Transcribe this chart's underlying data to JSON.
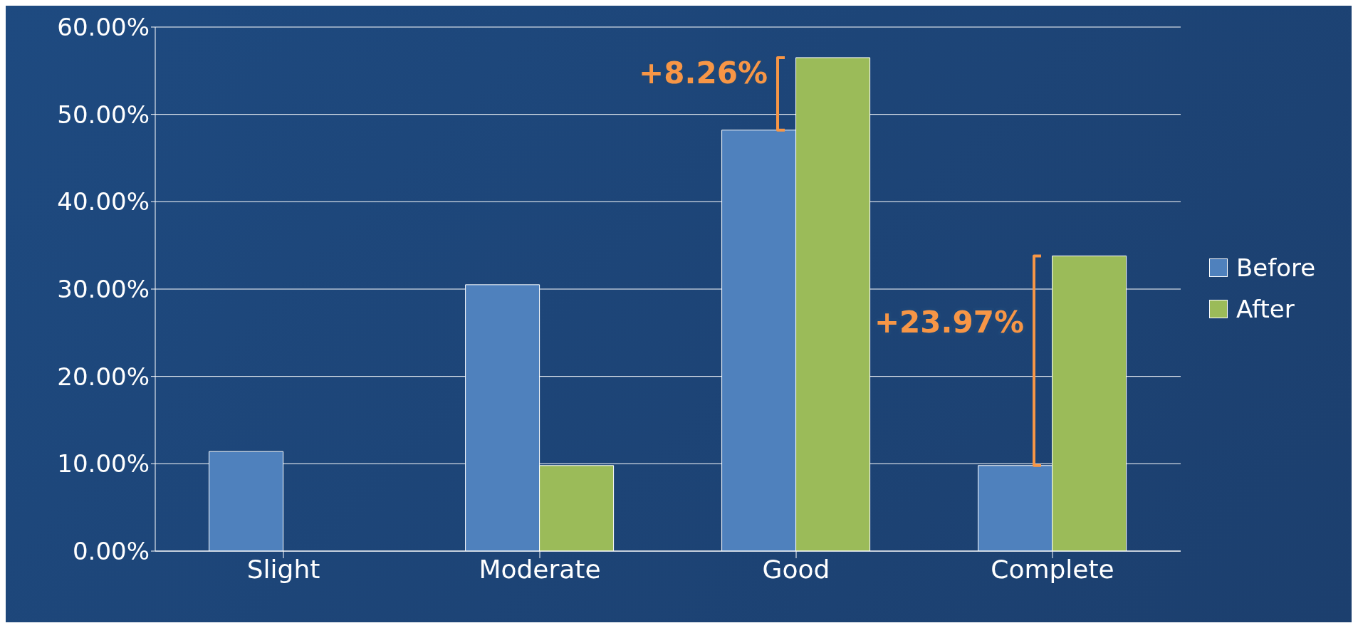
{
  "chart_data": {
    "type": "bar",
    "categories": [
      "Slight",
      "Moderate",
      "Good",
      "Complete"
    ],
    "series": [
      {
        "name": "Before",
        "color": "#4f81bd",
        "values": [
          11.4,
          30.5,
          48.2,
          9.8
        ]
      },
      {
        "name": "After",
        "color": "#9bbb59",
        "values": [
          null,
          9.8,
          56.5,
          33.8
        ]
      }
    ],
    "ylim": [
      0,
      60
    ],
    "yticks": [
      {
        "value": 0,
        "label": "0.00%"
      },
      {
        "value": 10,
        "label": "10.00%"
      },
      {
        "value": 20,
        "label": "20.00%"
      },
      {
        "value": 30,
        "label": "30.00%"
      },
      {
        "value": 40,
        "label": "40.00%"
      },
      {
        "value": 50,
        "label": "50.00%"
      },
      {
        "value": 60,
        "label": "60.00%"
      }
    ],
    "grid": "y",
    "legend": "right",
    "annotations": [
      {
        "text": "+8.26%",
        "x": "Good",
        "y": 54.5
      },
      {
        "text": "+23.97%",
        "x": "Complete",
        "y": 26
      }
    ]
  }
}
